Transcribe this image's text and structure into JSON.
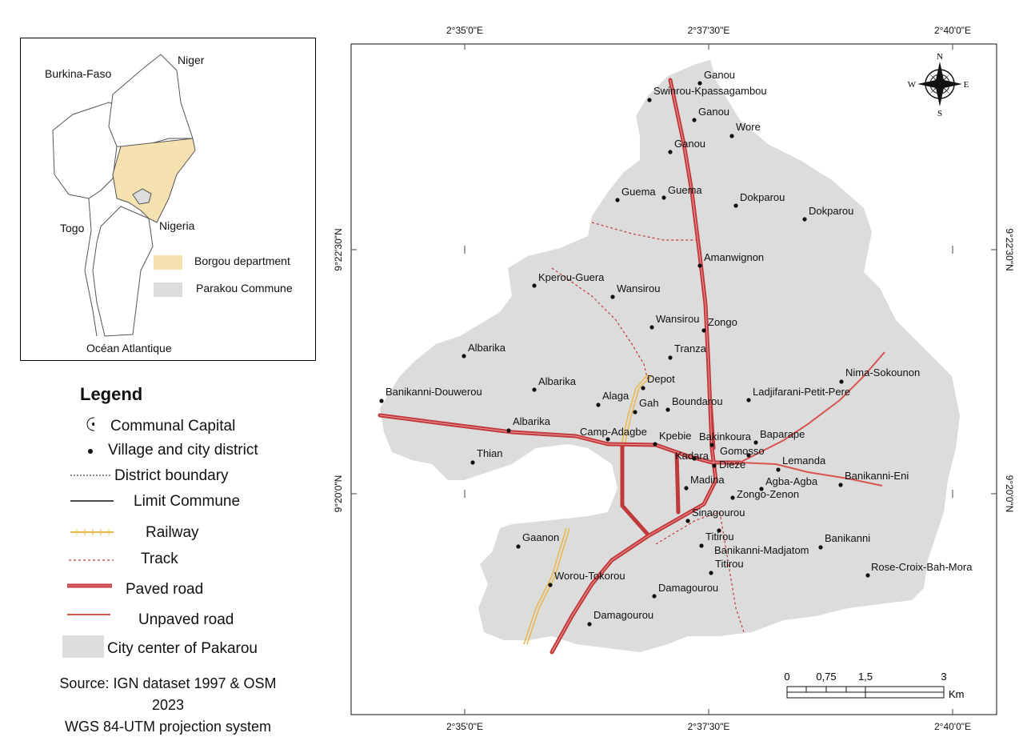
{
  "inset": {
    "labels": {
      "burkina": "Burkina-Faso",
      "niger": "Niger",
      "togo": "Togo",
      "nigeria": "Nigeria",
      "ocean": "Océan Atlantique"
    },
    "key": [
      {
        "label": "Borgou department",
        "color": "#f5e2b0"
      },
      {
        "label": "Parakou Commune",
        "color": "#dcdcdc"
      }
    ]
  },
  "legend": {
    "title": "Legend",
    "items": [
      {
        "label": "Communal Capital",
        "symbol": "circle-dot"
      },
      {
        "label": "Village and city district",
        "symbol": "dot"
      },
      {
        "label": "District boundary",
        "symbol": "dotted-line"
      },
      {
        "label": "Limit Commune",
        "symbol": "black-line"
      },
      {
        "label": "Railway",
        "symbol": "railway"
      },
      {
        "label": "Track",
        "symbol": "dashed-red"
      },
      {
        "label": "Paved road",
        "symbol": "paved-road"
      },
      {
        "label": "Unpaved road",
        "symbol": "unpaved-road"
      },
      {
        "label": "City center of Pakarou",
        "symbol": "gray-box"
      }
    ],
    "source": [
      "Source: IGN dataset 1997 & OSM",
      "2023",
      "WGS 84-UTM projection system"
    ]
  },
  "map": {
    "colors": {
      "area": "#dcdcdc",
      "paved": "#c0393b",
      "unpaved": "#d9534f",
      "track": "#c0393b",
      "railway": "#e8b84a"
    },
    "x_ticks": [
      "2°35'0\"E",
      "2°37'30\"E",
      "2°40'0\"E"
    ],
    "y_ticks": [
      "9°22'30\"N",
      "9°20'0\"N"
    ],
    "north": {
      "n": "N",
      "s": "S",
      "e": "E",
      "w": "W"
    },
    "scale": {
      "ticks": [
        "0",
        "0,75",
        "1,5",
        "3"
      ],
      "unit": "Km"
    },
    "places": [
      "Ganou",
      "Swinrou-Kpassagambou",
      "Ganou",
      "Wore",
      "Ganou",
      "Guema",
      "Guema",
      "Dokparou",
      "Dokparou",
      "Amanwignon",
      "Kperou-Guera",
      "Wansirou",
      "Wansirou",
      "Zongo",
      "Albarika",
      "Tranza",
      "Nima-Sokounon",
      "Depot",
      "Albarika",
      "Banikanni-Douwerou",
      "Alaga",
      "Gah",
      "Boundarou",
      "Ladjifarani-Petit-Pere",
      "Albarika",
      "Camp-Adagbe",
      "Kpebie",
      "Bakinkoura",
      "Baparape",
      "Gomosso",
      "Thian",
      "Kadara",
      "Dieze",
      "Lemanda",
      "Banikanni-Eni",
      "Madina",
      "Agba-Agba",
      "Zongo-Zenon",
      "Sinagourou",
      "Gaanon",
      "Titirou",
      "Banikanni",
      "Banikanni-Madjatom",
      "Titirou",
      "Rose-Croix-Bah-Mora",
      "Worou-Tokorou",
      "Damagourou",
      "Damagourou"
    ]
  }
}
